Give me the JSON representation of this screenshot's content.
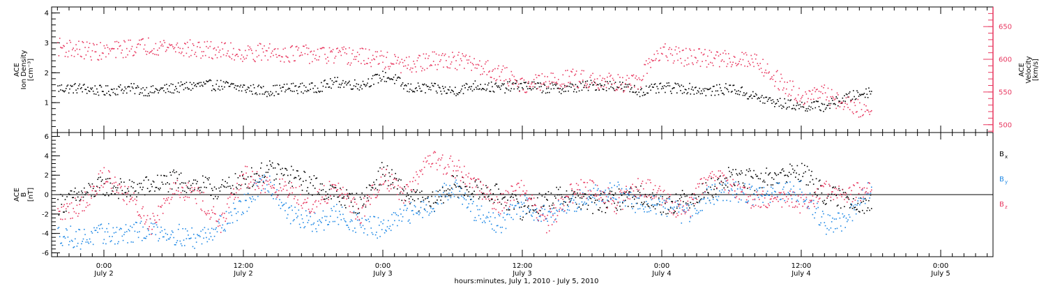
{
  "chart_data": {
    "type": "scatter",
    "xlabel": "hours:minutes, July  1, 2010 - July  5, 2010",
    "x_ticks": [
      {
        "hour": 24,
        "time": "0:00",
        "day": "July 2"
      },
      {
        "hour": 36,
        "time": "12:00",
        "day": "July 2"
      },
      {
        "hour": 48,
        "time": "0:00",
        "day": "July 3"
      },
      {
        "hour": 60,
        "time": "12:00",
        "day": "July 3"
      },
      {
        "hour": 72,
        "time": "0:00",
        "day": "July 4"
      },
      {
        "hour": 84,
        "time": "12:00",
        "day": "July 4"
      },
      {
        "hour": 96,
        "time": "0:00",
        "day": "July 5"
      }
    ],
    "xlim_hours": [
      19.5,
      100.5
    ],
    "panels": [
      {
        "id": "density",
        "ylabel_lines": [
          "ACE",
          "Ion Density",
          "[cm⁻³]"
        ],
        "ylim": [
          0,
          4.2
        ],
        "yticks": [
          1,
          2,
          3,
          4
        ],
        "y2label_lines": [
          "ACE",
          "Velocity",
          "[km/s]"
        ],
        "y2lim": [
          488,
          680
        ],
        "y2ticks": [
          500,
          550,
          600,
          650
        ],
        "series": [
          {
            "axis": "left",
            "color": "#000000",
            "x_hours": [
              20,
              22,
              24,
              26,
              28,
              30,
              32,
              34,
              36,
              38,
              40,
              42,
              44,
              46,
              48,
              49,
              50,
              52,
              54,
              56,
              58,
              60,
              62,
              64,
              66,
              68,
              70,
              72,
              74,
              76,
              78,
              80,
              82,
              84,
              86,
              88,
              90
            ],
            "values": [
              1.5,
              1.5,
              1.4,
              1.5,
              1.4,
              1.5,
              1.6,
              1.6,
              1.5,
              1.4,
              1.5,
              1.5,
              1.7,
              1.6,
              1.9,
              1.8,
              1.5,
              1.5,
              1.4,
              1.6,
              1.5,
              1.6,
              1.5,
              1.5,
              1.6,
              1.6,
              1.4,
              1.5,
              1.5,
              1.4,
              1.5,
              1.2,
              1.0,
              0.9,
              0.9,
              1.2,
              1.4
            ]
          },
          {
            "axis": "right",
            "color": "#e8375f",
            "x_hours": [
              20,
              22,
              24,
              26,
              28,
              30,
              32,
              34,
              36,
              38,
              40,
              42,
              44,
              46,
              48,
              50,
              52,
              54,
              56,
              58,
              60,
              62,
              64,
              66,
              68,
              70,
              71,
              72,
              74,
              76,
              78,
              80,
              82,
              84,
              86,
              88,
              90
            ],
            "values": [
              620,
              615,
              612,
              618,
              622,
              620,
              615,
              614,
              610,
              612,
              610,
              608,
              606,
              605,
              600,
              590,
              598,
              600,
              592,
              580,
              562,
              566,
              572,
              570,
              566,
              562,
              600,
              612,
              604,
              602,
              602,
              600,
              568,
              545,
              548,
              530,
              520
            ]
          }
        ]
      },
      {
        "id": "bfield",
        "ylabel_lines": [
          "ACE",
          "B",
          "[nT]"
        ],
        "ylim": [
          -6.4,
          6.4
        ],
        "yticks": [
          -6,
          -4,
          -2,
          0,
          2,
          4,
          6
        ],
        "zero_line": true,
        "series": [
          {
            "name": "Bx",
            "color": "#000000",
            "x_hours": [
              20,
              22,
              24,
              26,
              28,
              30,
              32,
              34,
              36,
              38,
              40,
              42,
              44,
              46,
              48,
              50,
              52,
              54,
              56,
              58,
              60,
              62,
              64,
              66,
              68,
              70,
              72,
              74,
              76,
              78,
              80,
              82,
              84,
              86,
              88,
              90
            ],
            "values": [
              -1,
              0,
              1,
              0.5,
              1,
              1.5,
              1,
              0.5,
              1.5,
              2.5,
              2,
              1,
              0,
              -1,
              2.5,
              0,
              -1,
              1,
              0.5,
              0,
              -1.5,
              -0.5,
              0,
              -1,
              -0.5,
              0,
              -1,
              -0.5,
              0.5,
              2,
              1.5,
              2,
              2.5,
              0,
              -0.5,
              -1
            ]
          },
          {
            "name": "By",
            "color": "#1e88e5",
            "x_hours": [
              20,
              22,
              24,
              26,
              28,
              30,
              32,
              34,
              36,
              38,
              40,
              42,
              44,
              46,
              48,
              50,
              52,
              54,
              56,
              58,
              60,
              62,
              64,
              66,
              68,
              70,
              72,
              74,
              76,
              78,
              80,
              82,
              84,
              86,
              88,
              90
            ],
            "values": [
              -4,
              -4.5,
              -4,
              -4,
              -3.5,
              -4,
              -4.5,
              -3,
              -1,
              1.5,
              -2,
              -3,
              -2,
              -3,
              -3.5,
              -2,
              -1,
              1,
              -2,
              -3,
              -1,
              -2,
              -1,
              0,
              0.5,
              -1,
              -1,
              -2,
              0,
              0.5,
              0,
              0.2,
              0.5,
              -3,
              -2.5,
              1
            ]
          },
          {
            "name": "Bz",
            "color": "#e8375f",
            "x_hours": [
              20,
              22,
              24,
              26,
              28,
              30,
              32,
              34,
              36,
              38,
              40,
              42,
              44,
              46,
              48,
              50,
              52,
              54,
              56,
              58,
              60,
              62,
              64,
              66,
              68,
              70,
              72,
              74,
              76,
              78,
              80,
              82,
              84,
              86,
              88,
              90
            ],
            "values": [
              -2,
              -1,
              2,
              0,
              -3,
              1,
              0,
              -3,
              2,
              1,
              0.5,
              -1,
              1,
              -2,
              2,
              0,
              3.5,
              3,
              1,
              -1,
              1,
              -3,
              0,
              1,
              -1,
              1,
              0,
              -2,
              2,
              1,
              -0.5,
              -0.3,
              -1,
              0.5,
              0,
              0.5
            ]
          }
        ],
        "legend": [
          "B",
          "B",
          "B"
        ],
        "legend_subscripts": [
          "x",
          "y",
          "z"
        ]
      }
    ]
  }
}
